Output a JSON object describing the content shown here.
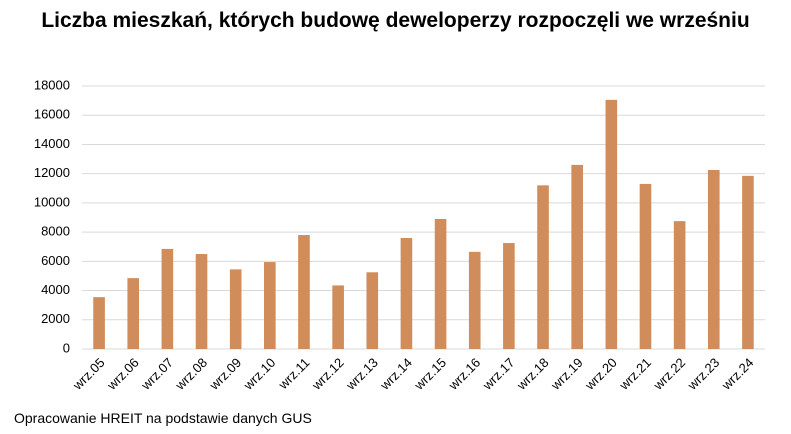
{
  "chart_data": {
    "type": "bar",
    "title": "Liczba mieszkań, których budowę deweloperzy rozpoczęli we wrześniu",
    "source": "Opracowanie HREIT na podstawie danych GUS",
    "categories": [
      "wrz.05",
      "wrz.06",
      "wrz.07",
      "wrz.08",
      "wrz.09",
      "wrz.10",
      "wrz.11",
      "wrz.12",
      "wrz.13",
      "wrz.14",
      "wrz.15",
      "wrz.16",
      "wrz.17",
      "wrz.18",
      "wrz.19",
      "wrz.20",
      "wrz.21",
      "wrz.22",
      "wrz.23",
      "wrz.24"
    ],
    "values": [
      3550,
      4850,
      6850,
      6500,
      5450,
      5950,
      7800,
      4350,
      5250,
      7600,
      8900,
      6650,
      7250,
      11200,
      12600,
      17050,
      11300,
      8750,
      12250,
      11850
    ],
    "color": "#d08c5a",
    "ylim": [
      0,
      18000
    ],
    "yticks": [
      0,
      2000,
      4000,
      6000,
      8000,
      10000,
      12000,
      14000,
      16000,
      18000
    ],
    "grid": true
  }
}
